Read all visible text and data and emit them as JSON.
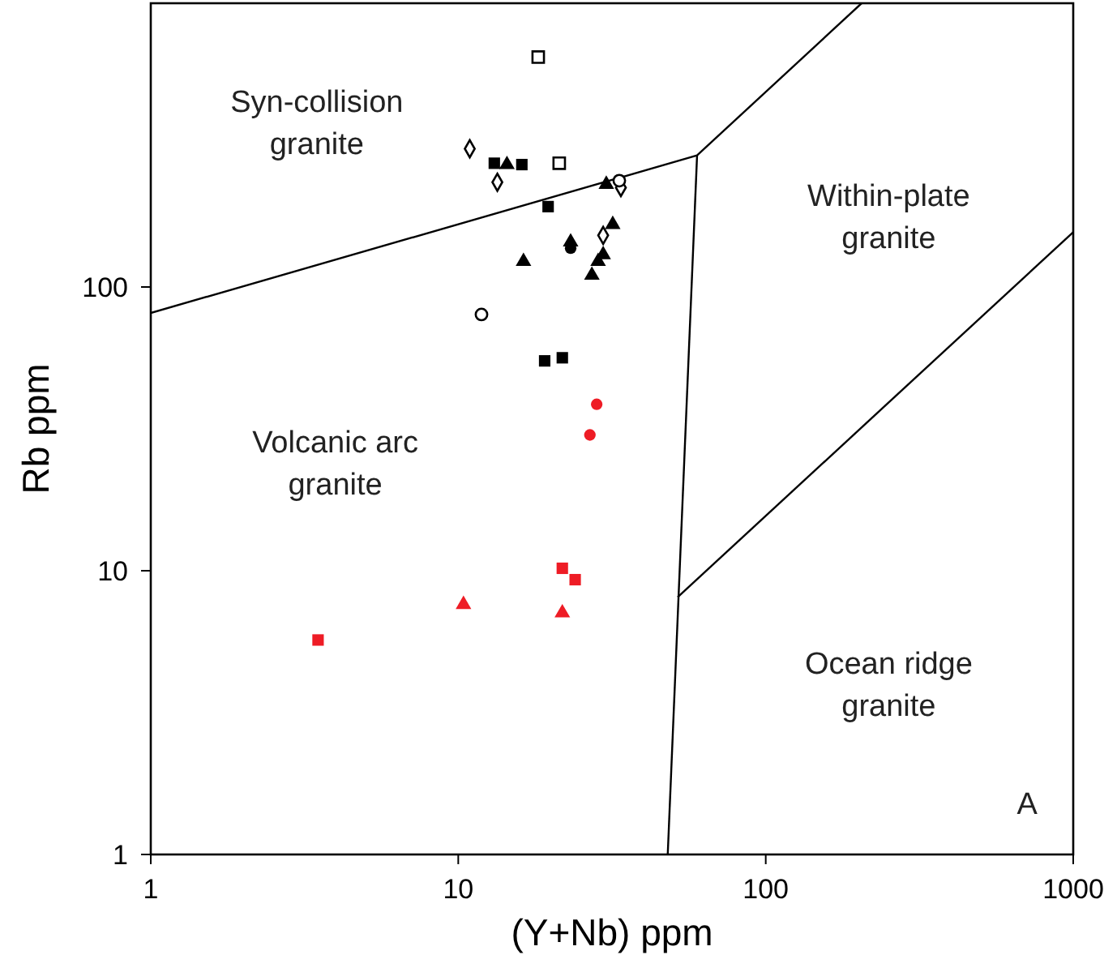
{
  "chart_data": {
    "type": "scatter",
    "xlabel": "(Y+Nb) ppm",
    "ylabel": "Rb ppm",
    "log": "xy",
    "xlim": [
      1,
      1000
    ],
    "ylim": [
      1,
      1000
    ],
    "xticks": [
      1,
      10,
      100,
      1000
    ],
    "yticks": [
      1,
      10,
      100
    ],
    "grid": false,
    "series": [
      {
        "type": "line",
        "color": "#000000",
        "marker": "none",
        "x": [
          1,
          59.8,
          205
        ],
        "values": [
          81,
          291,
          1000
        ]
      },
      {
        "type": "line",
        "color": "#000000",
        "marker": "none",
        "x": [
          59.8,
          48
        ],
        "values": [
          291,
          1
        ]
      },
      {
        "type": "line",
        "color": "#000000",
        "marker": "none",
        "x": [
          51.7,
          1000
        ],
        "values": [
          8.07,
          156
        ]
      },
      {
        "color": "#000000",
        "marker": "square",
        "x": [
          13.1,
          16.1,
          19.6,
          19.1,
          21.8
        ],
        "values": [
          273,
          270,
          192,
          54.9,
          56.3
        ]
      },
      {
        "color": "#000000",
        "marker": "triangle",
        "x": [
          14.4,
          30.3,
          31.8,
          16.3,
          29.6,
          28.5,
          27.2,
          23.2
        ],
        "values": [
          270,
          230,
          166,
          123,
          130,
          123,
          110,
          144
        ]
      },
      {
        "color": "#000000",
        "marker": "circle",
        "x": [
          23.2
        ],
        "values": [
          137
        ]
      },
      {
        "color": "#ffffff",
        "marker": "diamond",
        "x": [
          10.9,
          13.4,
          29.6,
          33.8
        ],
        "values": [
          307,
          234,
          152,
          224
        ]
      },
      {
        "color": "#ffffff",
        "marker": "square",
        "x": [
          18.2,
          21.3
        ],
        "values": [
          646,
          273
        ]
      },
      {
        "color": "#ffffff",
        "marker": "circle",
        "x": [
          11.9,
          33.4
        ],
        "values": [
          80,
          237
        ]
      },
      {
        "color": "#ee1c25",
        "marker": "circle",
        "x": [
          28.2,
          26.8
        ],
        "values": [
          38.6,
          30.1
        ]
      },
      {
        "color": "#ee1c25",
        "marker": "square",
        "x": [
          3.5,
          21.8,
          24.0
        ],
        "values": [
          5.7,
          10.2,
          9.3
        ]
      },
      {
        "color": "#ee1c25",
        "marker": "triangle",
        "x": [
          10.4,
          21.8
        ],
        "values": [
          7.6,
          7.1
        ]
      }
    ],
    "annotations": [
      "Syn-collision\ngranite",
      "Volcanic arc\ngranite",
      "Within-plate\ngranite",
      "Ocean ridge\ngranite",
      "A"
    ]
  }
}
